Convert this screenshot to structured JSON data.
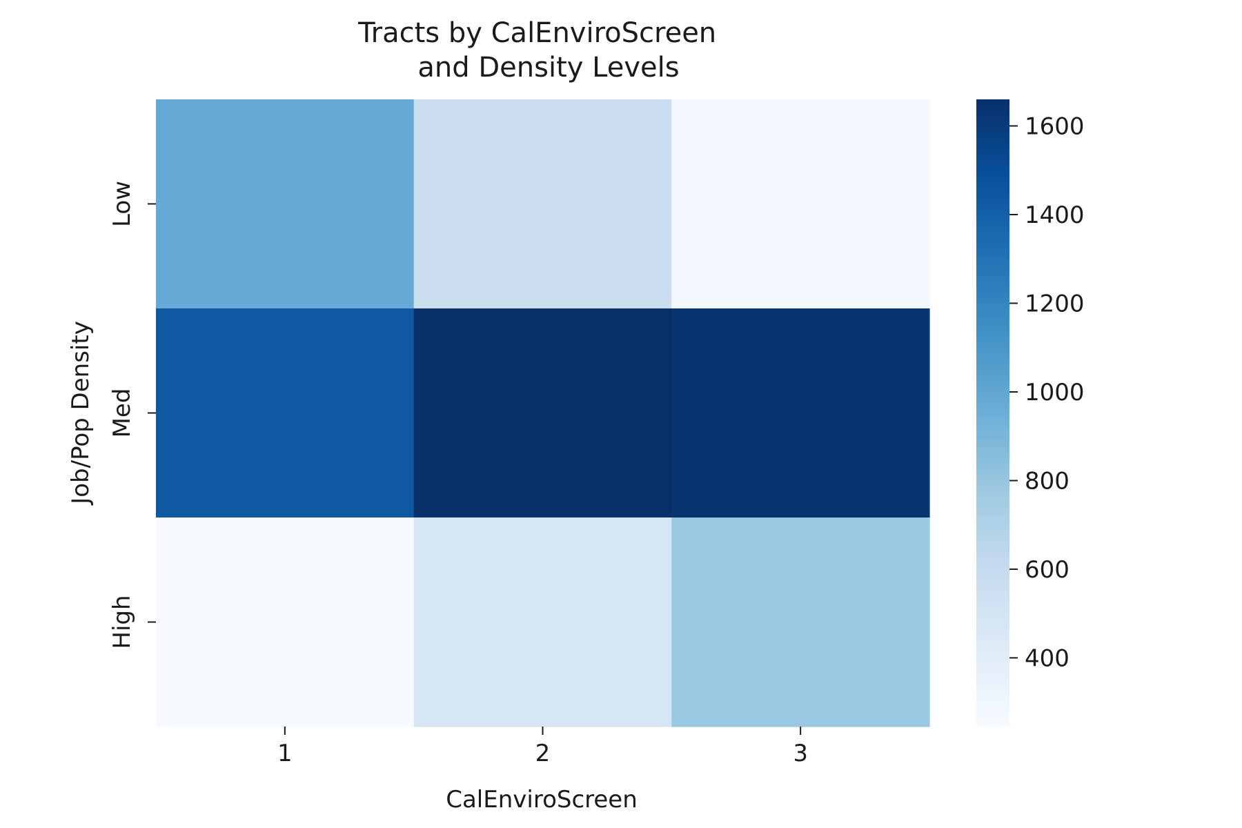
{
  "chart_data": {
    "type": "heatmap",
    "title": "Tracts by CalEnviroScreen\nand Density Levels",
    "xlabel": "CalEnviroScreen",
    "ylabel": "Job/Pop Density",
    "x_categories": [
      "1",
      "2",
      "3"
    ],
    "y_categories": [
      "Low",
      "Med",
      "High"
    ],
    "values": [
      [
        980,
        560,
        280
      ],
      [
        1440,
        1660,
        1640
      ],
      [
        245,
        480,
        790
      ]
    ],
    "colormap": "Blues",
    "colorbar": {
      "min": 245,
      "max": 1660,
      "ticks": [
        400,
        600,
        800,
        1000,
        1200,
        1400,
        1600
      ],
      "tick_labels": [
        "400",
        "600",
        "800",
        "1000",
        "1200",
        "1400",
        "1600"
      ]
    },
    "grid": false
  },
  "colors": {
    "blues": [
      "#f7fbff",
      "#deebf7",
      "#c6dbef",
      "#9ecae1",
      "#6baed6",
      "#4292c6",
      "#2171b5",
      "#08519c",
      "#08306b"
    ],
    "text": "#1a1a1a",
    "axis": "#1a1a1a"
  }
}
